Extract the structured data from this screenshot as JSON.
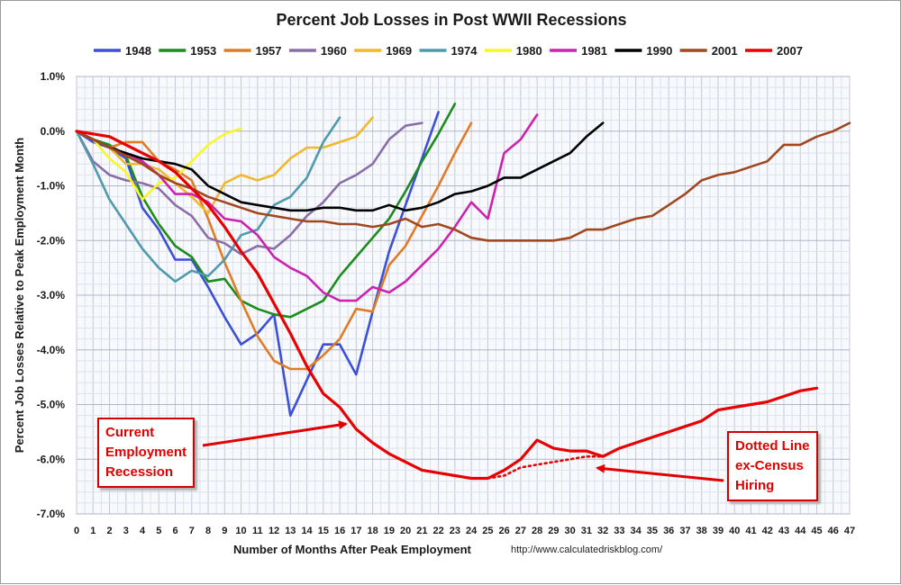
{
  "chart_data": {
    "type": "line",
    "title": "Percent Job Losses in Post WWII Recessions",
    "xlabel": "Number of Months After Peak Employment",
    "ylabel": "Percent Job Losses Relative to Peak Employment Month",
    "source": "http://www.calculatedriskblog.com/",
    "xlim": [
      0,
      47
    ],
    "ylim": [
      -7,
      1
    ],
    "x_ticks": [
      "0",
      "1",
      "2",
      "3",
      "4",
      "5",
      "6",
      "7",
      "8",
      "9",
      "10",
      "11",
      "12",
      "13",
      "14",
      "15",
      "16",
      "17",
      "18",
      "19",
      "20",
      "21",
      "22",
      "23",
      "24",
      "25",
      "26",
      "27",
      "28",
      "29",
      "30",
      "31",
      "32",
      "33",
      "34",
      "35",
      "36",
      "37",
      "38",
      "39",
      "40",
      "41",
      "42",
      "43",
      "44",
      "45",
      "46",
      "47"
    ],
    "y_ticks": [
      {
        "value": 1,
        "label": "1.0%"
      },
      {
        "value": 0,
        "label": "0.0%"
      },
      {
        "value": -1,
        "label": "-1.0%"
      },
      {
        "value": -2,
        "label": "-2.0%"
      },
      {
        "value": -3,
        "label": "-3.0%"
      },
      {
        "value": -4,
        "label": "-4.0%"
      },
      {
        "value": -5,
        "label": "-5.0%"
      },
      {
        "value": -6,
        "label": "-6.0%"
      },
      {
        "value": -7,
        "label": "-7.0%"
      }
    ],
    "grid": true,
    "legend_position": "top",
    "series": [
      {
        "name": "1948",
        "color": "#3c4fd8",
        "x": [
          0,
          1,
          2,
          3,
          4,
          5,
          6,
          7,
          8,
          9,
          10,
          11,
          12,
          13,
          14,
          15,
          16,
          17,
          18,
          19,
          20,
          21,
          22
        ],
        "values": [
          0,
          -0.2,
          -0.3,
          -0.5,
          -1.4,
          -1.8,
          -2.35,
          -2.35,
          -2.85,
          -3.4,
          -3.9,
          -3.7,
          -3.35,
          -5.2,
          -4.55,
          -3.9,
          -3.9,
          -4.45,
          -3.3,
          -2.2,
          -1.35,
          -0.5,
          0.35
        ]
      },
      {
        "name": "1953",
        "color": "#1c8c1c",
        "x": [
          0,
          1,
          2,
          3,
          4,
          5,
          6,
          7,
          8,
          9,
          10,
          11,
          12,
          13,
          14,
          15,
          16,
          17,
          18,
          19,
          20,
          21,
          22,
          23
        ],
        "values": [
          0,
          -0.15,
          -0.25,
          -0.45,
          -1.2,
          -1.7,
          -2.1,
          -2.3,
          -2.75,
          -2.7,
          -3.1,
          -3.25,
          -3.35,
          -3.4,
          -3.25,
          -3.1,
          -2.65,
          -2.3,
          -1.95,
          -1.6,
          -1.1,
          -0.55,
          -0.05,
          0.5
        ]
      },
      {
        "name": "1957",
        "color": "#e07b26",
        "x": [
          0,
          1,
          2,
          3,
          4,
          5,
          6,
          7,
          8,
          9,
          10,
          11,
          12,
          13,
          14,
          15,
          16,
          17,
          18,
          19,
          20,
          21,
          22,
          23,
          24
        ],
        "values": [
          0,
          -0.15,
          -0.3,
          -0.2,
          -0.2,
          -0.55,
          -0.7,
          -0.9,
          -1.6,
          -2.4,
          -3.1,
          -3.75,
          -4.2,
          -4.35,
          -4.35,
          -4.1,
          -3.8,
          -3.25,
          -3.3,
          -2.45,
          -2.1,
          -1.55,
          -1.0,
          -0.4,
          0.15
        ]
      },
      {
        "name": "1960",
        "color": "#8a6ea8",
        "x": [
          0,
          1,
          2,
          3,
          4,
          5,
          6,
          7,
          8,
          9,
          10,
          11,
          12,
          13,
          14,
          15,
          16,
          17,
          18,
          19,
          20,
          21
        ],
        "values": [
          0,
          -0.55,
          -0.8,
          -0.9,
          -0.95,
          -1.05,
          -1.35,
          -1.55,
          -1.95,
          -2.05,
          -2.25,
          -2.1,
          -2.15,
          -1.9,
          -1.55,
          -1.3,
          -0.95,
          -0.8,
          -0.6,
          -0.15,
          0.1,
          0.15
        ]
      },
      {
        "name": "1969",
        "color": "#f0b92c",
        "x": [
          0,
          1,
          2,
          3,
          4,
          5,
          6,
          7,
          8,
          9,
          10,
          11,
          12,
          13,
          14,
          15,
          16,
          17,
          18
        ],
        "values": [
          0,
          -0.15,
          -0.3,
          -0.6,
          -0.6,
          -0.7,
          -0.95,
          -1.2,
          -1.5,
          -0.95,
          -0.8,
          -0.9,
          -0.8,
          -0.5,
          -0.3,
          -0.3,
          -0.2,
          -0.1,
          0.25
        ]
      },
      {
        "name": "1974",
        "color": "#4f9aad",
        "x": [
          0,
          1,
          2,
          3,
          4,
          5,
          6,
          7,
          8,
          9,
          10,
          11,
          12,
          13,
          14,
          15,
          16
        ],
        "values": [
          0,
          -0.6,
          -1.25,
          -1.7,
          -2.15,
          -2.5,
          -2.75,
          -2.55,
          -2.65,
          -2.35,
          -1.9,
          -1.8,
          -1.35,
          -1.2,
          -0.85,
          -0.2,
          0.25
        ]
      },
      {
        "name": "1980",
        "color": "#f7f72a",
        "x": [
          0,
          1,
          2,
          3,
          4,
          5,
          6,
          7,
          8,
          9,
          10
        ],
        "values": [
          0,
          -0.15,
          -0.5,
          -0.75,
          -1.25,
          -0.95,
          -0.85,
          -0.55,
          -0.25,
          -0.05,
          0.05
        ]
      },
      {
        "name": "1981",
        "color": "#cc22b0",
        "x": [
          0,
          1,
          2,
          3,
          4,
          5,
          6,
          7,
          8,
          9,
          10,
          11,
          12,
          13,
          14,
          15,
          16,
          17,
          18,
          19,
          20,
          21,
          22,
          23,
          24,
          25,
          26,
          27,
          28
        ],
        "values": [
          0,
          -0.15,
          -0.3,
          -0.4,
          -0.55,
          -0.8,
          -1.15,
          -1.15,
          -1.3,
          -1.6,
          -1.65,
          -1.9,
          -2.3,
          -2.5,
          -2.65,
          -2.95,
          -3.1,
          -3.1,
          -2.85,
          -2.95,
          -2.75,
          -2.45,
          -2.15,
          -1.75,
          -1.3,
          -1.6,
          -0.4,
          -0.15,
          0.3
        ]
      },
      {
        "name": "1990",
        "color": "#000000",
        "x": [
          0,
          1,
          2,
          3,
          4,
          5,
          6,
          7,
          8,
          9,
          10,
          11,
          12,
          13,
          14,
          15,
          16,
          17,
          18,
          19,
          20,
          21,
          22,
          23,
          24,
          25,
          26,
          27,
          28,
          29,
          30,
          31,
          32
        ],
        "values": [
          0,
          -0.15,
          -0.3,
          -0.4,
          -0.5,
          -0.55,
          -0.6,
          -0.7,
          -1.0,
          -1.15,
          -1.3,
          -1.35,
          -1.4,
          -1.45,
          -1.45,
          -1.4,
          -1.4,
          -1.45,
          -1.45,
          -1.35,
          -1.45,
          -1.4,
          -1.3,
          -1.15,
          -1.1,
          -1.0,
          -0.85,
          -0.85,
          -0.7,
          -0.55,
          -0.4,
          -0.1,
          0.15
        ]
      },
      {
        "name": "2001",
        "color": "#a1471f",
        "x": [
          0,
          1,
          2,
          3,
          4,
          5,
          6,
          7,
          8,
          9,
          10,
          11,
          12,
          13,
          14,
          15,
          16,
          17,
          18,
          19,
          20,
          21,
          22,
          23,
          24,
          25,
          26,
          27,
          28,
          29,
          30,
          31,
          32,
          33,
          34,
          35,
          36,
          37,
          38,
          39,
          40,
          41,
          42,
          43,
          44,
          45,
          46,
          47
        ],
        "values": [
          0,
          -0.15,
          -0.3,
          -0.45,
          -0.6,
          -0.8,
          -0.95,
          -1.05,
          -1.2,
          -1.3,
          -1.4,
          -1.5,
          -1.55,
          -1.6,
          -1.65,
          -1.65,
          -1.7,
          -1.7,
          -1.75,
          -1.7,
          -1.6,
          -1.75,
          -1.7,
          -1.8,
          -1.95,
          -2.0,
          -2.0,
          -2.0,
          -2.0,
          -2.0,
          -1.95,
          -1.8,
          -1.8,
          -1.7,
          -1.6,
          -1.55,
          -1.35,
          -1.15,
          -0.9,
          -0.8,
          -0.75,
          -0.65,
          -0.55,
          -0.25,
          -0.25,
          -0.1,
          0.0,
          0.15
        ]
      },
      {
        "name": "2007",
        "color": "#e80000",
        "x": [
          0,
          1,
          2,
          3,
          4,
          5,
          6,
          7,
          8,
          9,
          10,
          11,
          12,
          13,
          14,
          15,
          16,
          17,
          18,
          19,
          20,
          21,
          22,
          23,
          24,
          25,
          26,
          27,
          28,
          29,
          30,
          31,
          32,
          33,
          34,
          35,
          36,
          37,
          38,
          39,
          40,
          41,
          42,
          43,
          44,
          45
        ],
        "values": [
          0,
          -0.05,
          -0.1,
          -0.25,
          -0.4,
          -0.55,
          -0.75,
          -1.05,
          -1.35,
          -1.75,
          -2.2,
          -2.6,
          -3.15,
          -3.7,
          -4.3,
          -4.8,
          -5.05,
          -5.45,
          -5.7,
          -5.9,
          -6.05,
          -6.2,
          -6.25,
          -6.3,
          -6.35,
          -6.35,
          -6.2,
          -6.0,
          -5.65,
          -5.8,
          -5.85,
          -5.85,
          -5.95,
          -5.8,
          -5.7,
          -5.6,
          -5.5,
          -5.4,
          -5.3,
          -5.1,
          -5.05,
          -5.0,
          -4.95,
          -4.85,
          -4.75,
          -4.7
        ]
      },
      {
        "name": "2007 ex-Census",
        "color": "#e80000",
        "dotted": true,
        "x": [
          25,
          26,
          27,
          28,
          29,
          30,
          31,
          32
        ],
        "values": [
          -6.35,
          -6.3,
          -6.15,
          -6.1,
          -6.05,
          -6.0,
          -5.95,
          -5.95
        ]
      }
    ],
    "annotations": [
      {
        "lines": [
          "Current",
          "Employment",
          "Recession"
        ]
      },
      {
        "lines": [
          "Dotted  Line",
          "ex-Census",
          "Hiring"
        ]
      }
    ]
  }
}
